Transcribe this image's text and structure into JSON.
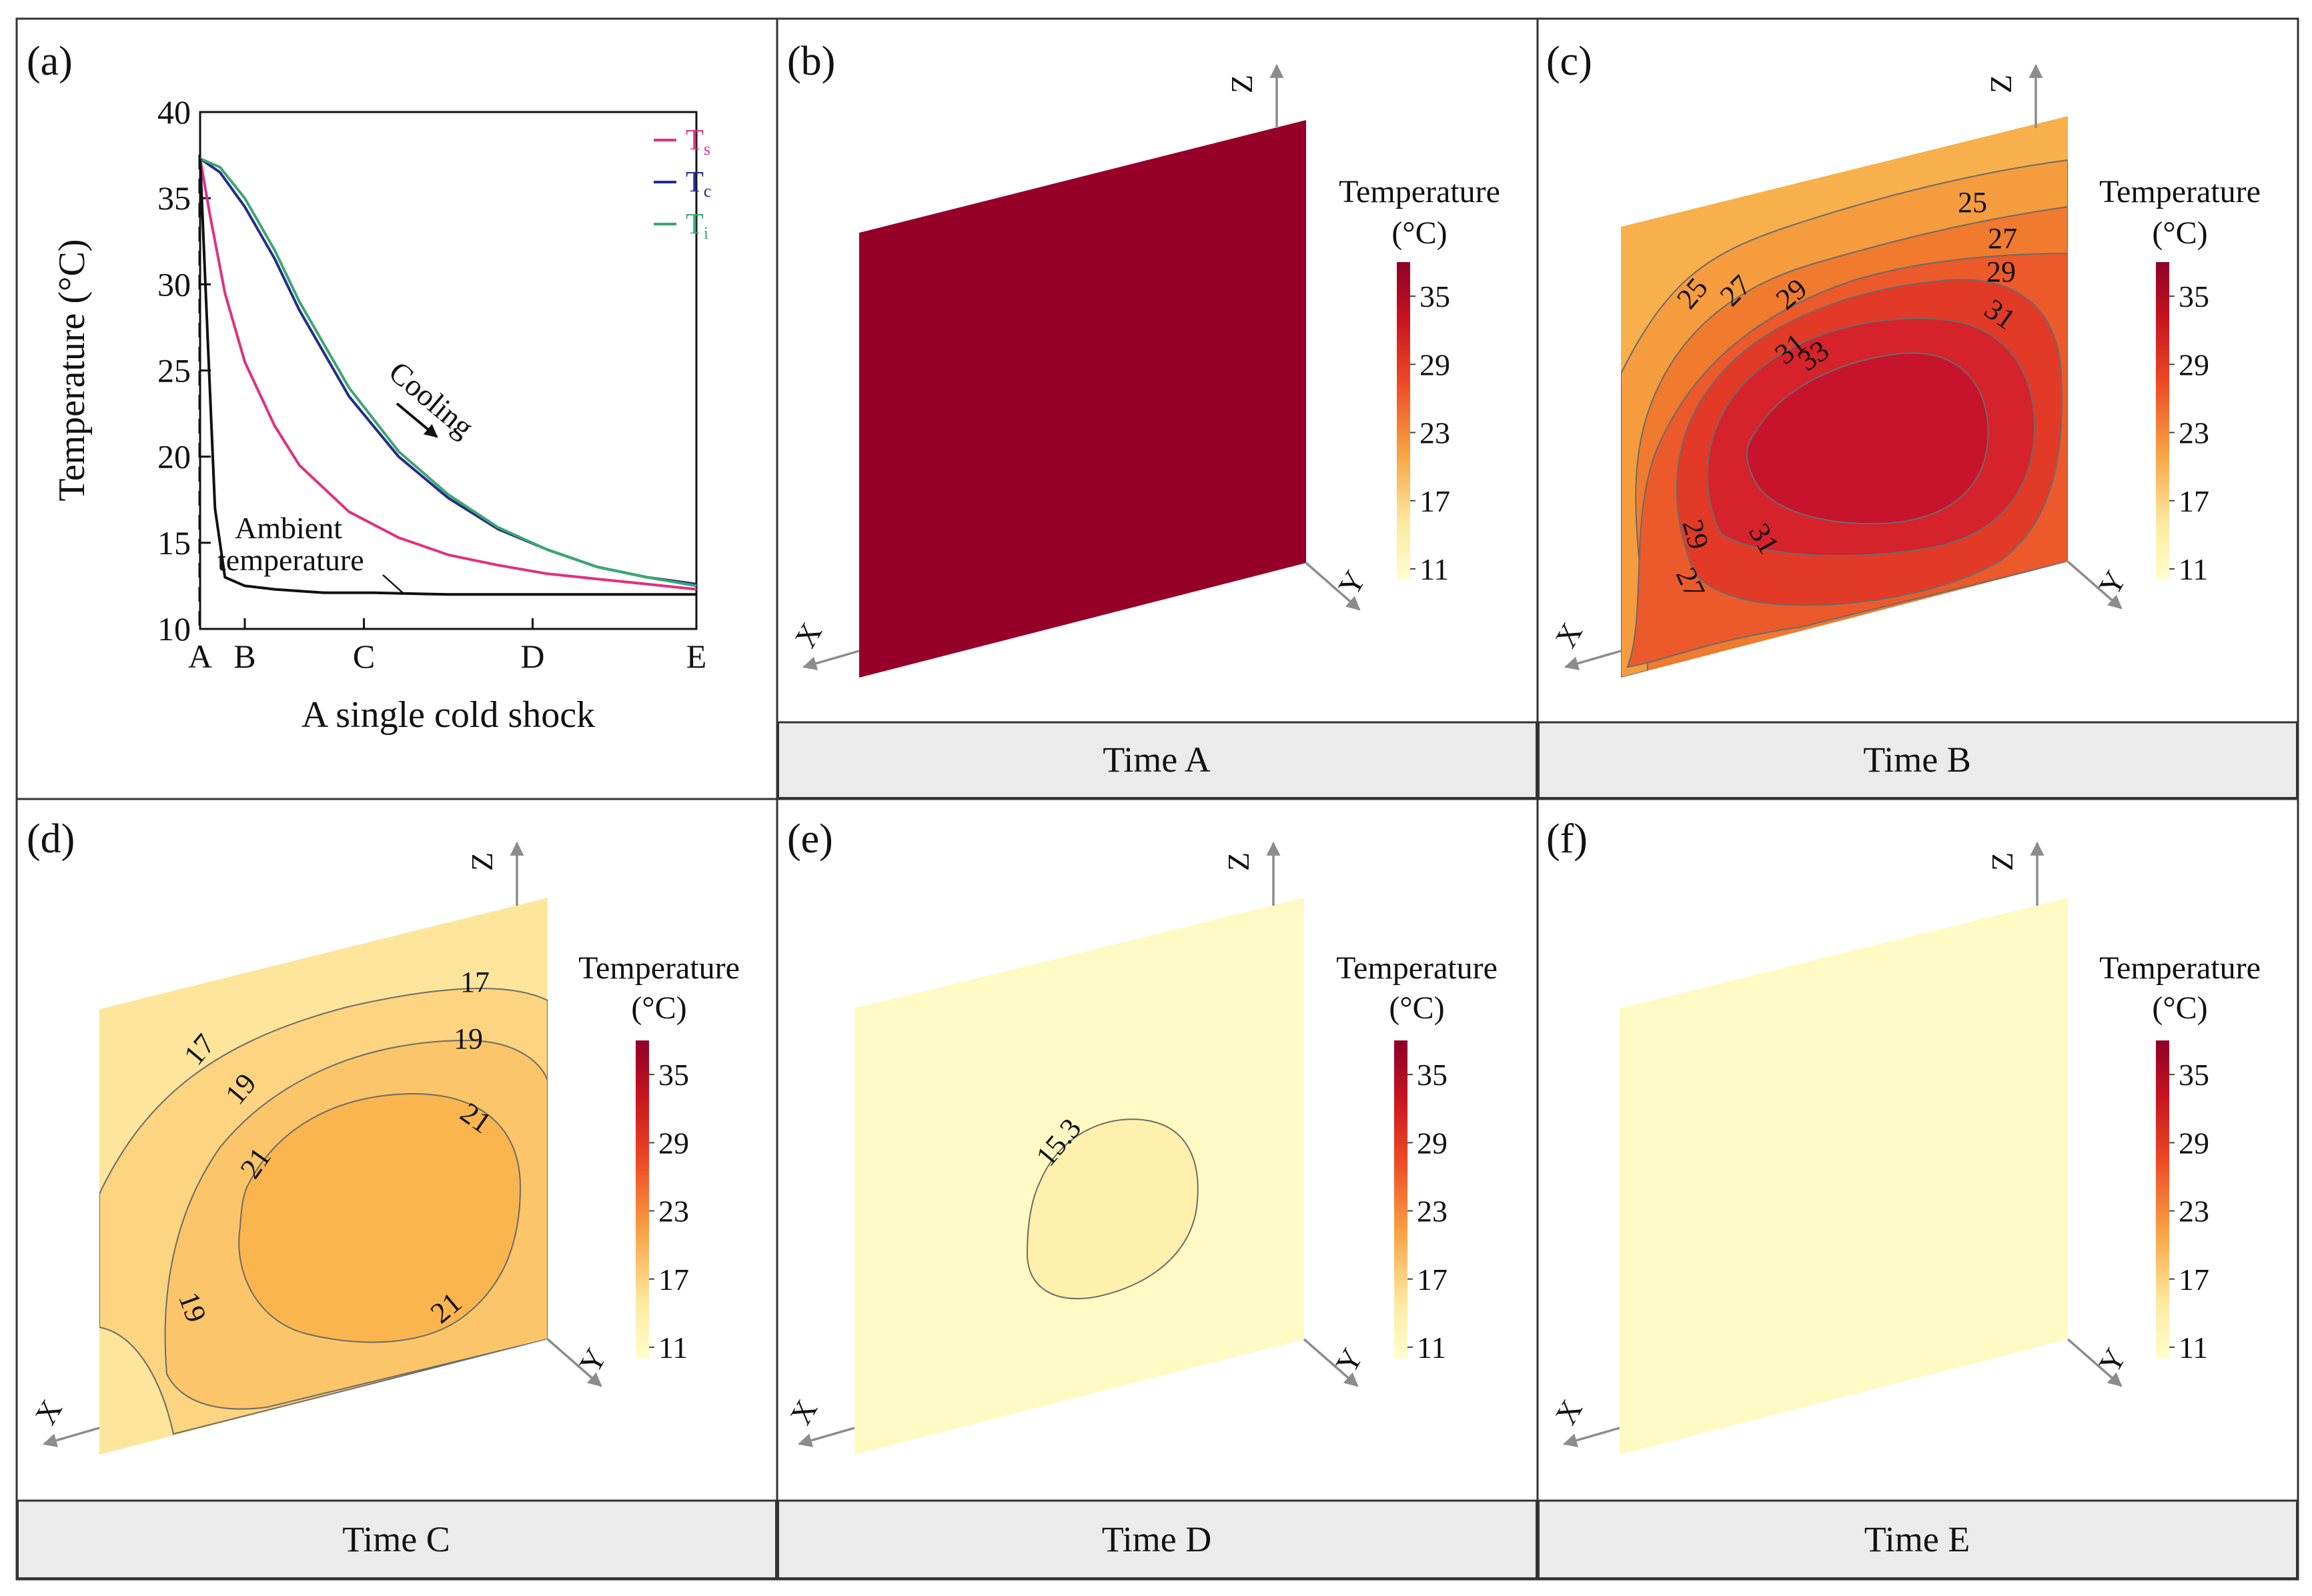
{
  "chart_data": [
    {
      "panel": "(a)",
      "type": "line",
      "ylabel": "Temperature (°C)",
      "xlabel": "A single cold shock",
      "ylim": [
        10,
        40
      ],
      "yticks": [
        "10",
        "15",
        "20",
        "25",
        "30",
        "35",
        "40"
      ],
      "xticks": [
        {
          "label": "A",
          "x": 0.0
        },
        {
          "label": "B",
          "x": 0.09
        },
        {
          "label": "C",
          "x": 0.33
        },
        {
          "label": "D",
          "x": 0.67
        },
        {
          "label": "E",
          "x": 1.0
        }
      ],
      "legend": [
        {
          "label": "T",
          "sub": "s",
          "color": "#e0307f"
        },
        {
          "label": "T",
          "sub": "c",
          "color": "#262c8a"
        },
        {
          "label": "T",
          "sub": "i",
          "color": "#3aa870"
        }
      ],
      "annotations": {
        "cooling": "Cooling",
        "ambient_line1": "Ambient",
        "ambient_line2": "temperature"
      },
      "series": [
        {
          "name": "Ts",
          "color": "#e0307f",
          "x": [
            0.0,
            0.02,
            0.05,
            0.09,
            0.15,
            0.2,
            0.3,
            0.4,
            0.5,
            0.6,
            0.7,
            0.8,
            0.9,
            1.0
          ],
          "values": [
            37.3,
            34.0,
            29.5,
            25.5,
            21.8,
            19.5,
            16.8,
            15.3,
            14.3,
            13.7,
            13.2,
            12.9,
            12.6,
            12.3
          ]
        },
        {
          "name": "Tc",
          "color": "#262c8a",
          "x": [
            0.0,
            0.04,
            0.09,
            0.15,
            0.2,
            0.3,
            0.4,
            0.5,
            0.6,
            0.7,
            0.8,
            0.9,
            1.0
          ],
          "values": [
            37.3,
            36.5,
            34.5,
            31.5,
            28.5,
            23.5,
            20.0,
            17.6,
            15.8,
            14.6,
            13.6,
            13.0,
            12.6
          ]
        },
        {
          "name": "Ti",
          "color": "#3aa870",
          "x": [
            0.0,
            0.04,
            0.09,
            0.15,
            0.2,
            0.3,
            0.4,
            0.5,
            0.6,
            0.7,
            0.8,
            0.9,
            1.0
          ],
          "values": [
            37.3,
            36.8,
            35.0,
            32.0,
            29.0,
            24.0,
            20.3,
            17.8,
            15.9,
            14.6,
            13.6,
            13.0,
            12.5
          ]
        },
        {
          "name": "Ambient temperature",
          "color": "#111111",
          "x": [
            0.0,
            0.015,
            0.03,
            0.05,
            0.09,
            0.15,
            0.25,
            0.35,
            0.5,
            0.7,
            0.85,
            1.0
          ],
          "values": [
            37.3,
            27.0,
            17.0,
            13.0,
            12.5,
            12.3,
            12.1,
            12.1,
            12.0,
            12.0,
            12.0,
            12.0
          ]
        }
      ]
    },
    {
      "panel": "(b)",
      "type": "heatmap",
      "caption": "Time A",
      "colorbar_title": "Temperature",
      "colorbar_unit": "(°C)",
      "colorbar_ticks": [
        "35",
        "29",
        "23",
        "17",
        "11"
      ],
      "axes": [
        "Z",
        "Y",
        "X"
      ],
      "levels": [],
      "contour_labels": []
    },
    {
      "panel": "(c)",
      "type": "heatmap",
      "caption": "Time B",
      "colorbar_title": "Temperature",
      "colorbar_unit": "(°C)",
      "colorbar_ticks": [
        "35",
        "29",
        "23",
        "17",
        "11"
      ],
      "axes": [
        "Z",
        "Y",
        "X"
      ],
      "levels": [
        25,
        27,
        29,
        31,
        33
      ],
      "contour_labels": [
        "25",
        "27",
        "29",
        "31",
        "25",
        "27",
        "29",
        "31",
        "33",
        "29",
        "31",
        "27"
      ]
    },
    {
      "panel": "(d)",
      "type": "heatmap",
      "caption": "Time C",
      "colorbar_title": "Temperature",
      "colorbar_unit": "(°C)",
      "colorbar_ticks": [
        "35",
        "29",
        "23",
        "17",
        "11"
      ],
      "axes": [
        "Z",
        "Y",
        "X"
      ],
      "levels": [
        17,
        19,
        21
      ],
      "contour_labels": [
        "17",
        "19",
        "21",
        "17",
        "19",
        "21",
        "21",
        "19"
      ]
    },
    {
      "panel": "(e)",
      "type": "heatmap",
      "caption": "Time D",
      "colorbar_title": "Temperature",
      "colorbar_unit": "(°C)",
      "colorbar_ticks": [
        "35",
        "29",
        "23",
        "17",
        "11"
      ],
      "axes": [
        "Z",
        "Y",
        "X"
      ],
      "levels": [
        15.3
      ],
      "contour_labels": [
        "15.3"
      ]
    },
    {
      "panel": "(f)",
      "type": "heatmap",
      "caption": "Time E",
      "colorbar_title": "Temperature",
      "colorbar_unit": "(°C)",
      "colorbar_ticks": [
        "35",
        "29",
        "23",
        "17",
        "11"
      ],
      "axes": [
        "Z",
        "Y",
        "X"
      ],
      "levels": [],
      "contour_labels": []
    }
  ]
}
